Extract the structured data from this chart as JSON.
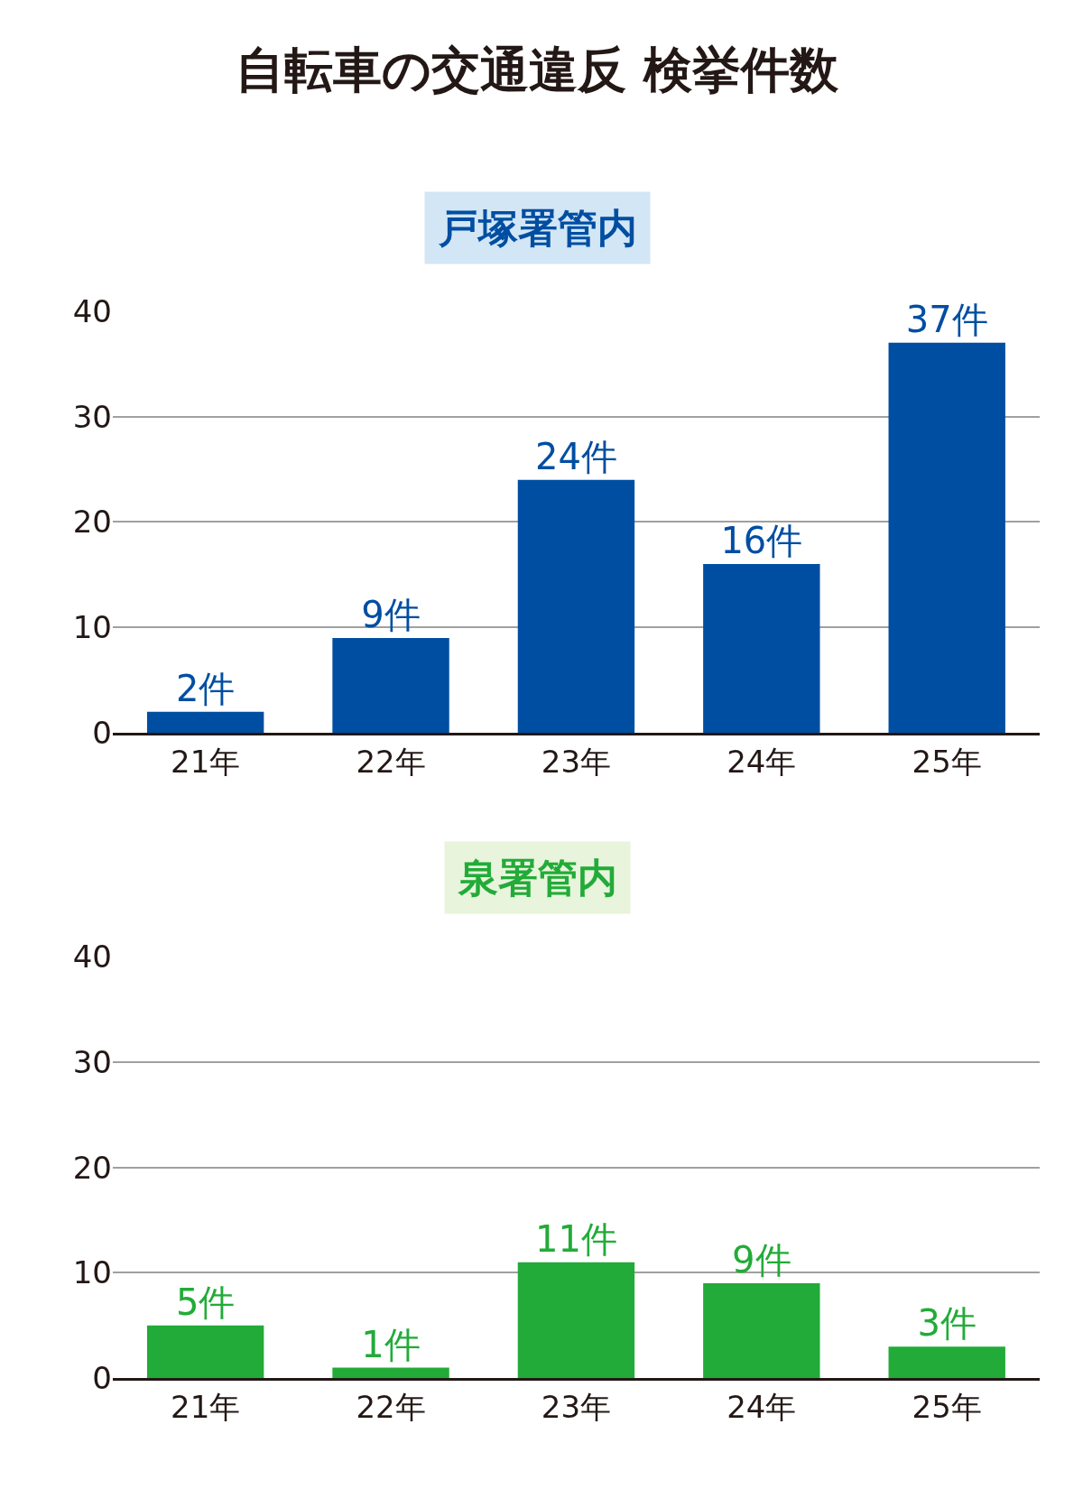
{
  "chart_data": [
    {
      "type": "bar",
      "title": "自転車の交通違反 検挙件数",
      "subtitle": "戸塚署管内",
      "categories": [
        "21年",
        "22年",
        "23年",
        "24年",
        "25年"
      ],
      "values": [
        2,
        9,
        24,
        16,
        37
      ],
      "color": "#004ea2",
      "value_labels": [
        "2件",
        "9件",
        "24件",
        "16件",
        "37件"
      ],
      "ylim": [
        0,
        40
      ],
      "yticks": [
        0,
        10,
        20,
        30,
        40
      ],
      "grid": "y"
    },
    {
      "type": "bar",
      "title": "泉署管内",
      "categories": [
        "21年",
        "22年",
        "23年",
        "24年",
        "25年"
      ],
      "values": [
        5,
        1,
        11,
        9,
        3
      ],
      "color": "#22ab38",
      "value_labels": [
        "5件",
        "1件",
        "11件",
        "9件",
        "3件"
      ],
      "ylim": [
        0,
        40
      ],
      "yticks": [
        0,
        10,
        20,
        30,
        40
      ],
      "grid": "y"
    }
  ]
}
